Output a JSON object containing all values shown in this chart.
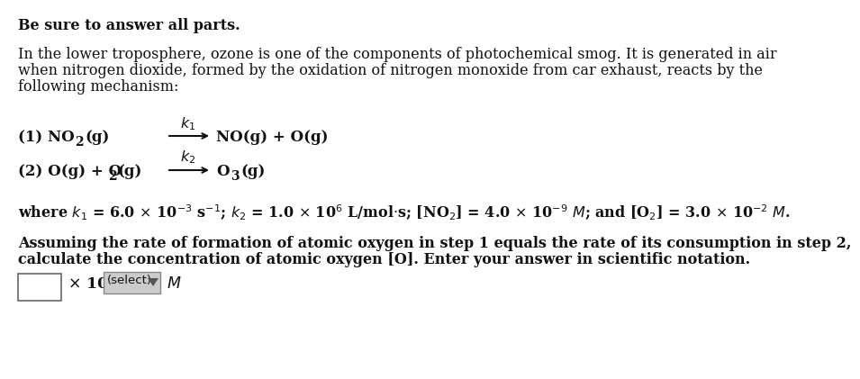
{
  "background_color": "#ffffff",
  "text_color": "#111111",
  "title": "Be sure to answer all parts.",
  "para_line1": "In the lower troposphere, ozone is one of the components of photochemical smog. It is generated in air",
  "para_line2": "when nitrogen dioxide, formed by the oxidation of nitrogen monoxide from car exhaust, reacts by the",
  "para_line3": "following mechanism:",
  "assume_line1": "Assuming the rate of formation of atomic oxygen in step 1 equals the rate of its consumption in step 2,",
  "assume_line2": "calculate the concentration of atomic oxygen [O]. Enter your answer in scientific notation.",
  "fs": 11.5,
  "fs_eq": 12.0
}
